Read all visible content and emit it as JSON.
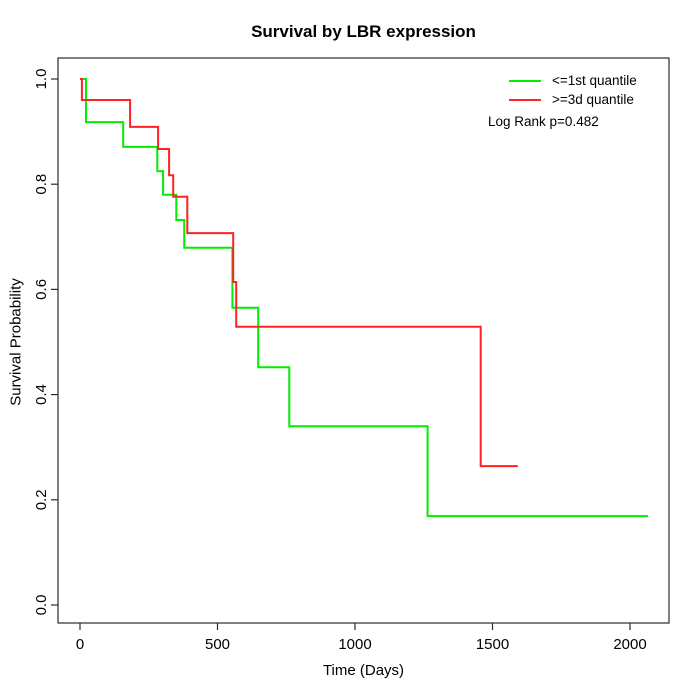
{
  "chart_data": {
    "type": "line",
    "subtype": "kaplan-meier-step",
    "title": "Survival by LBR expression",
    "xlabel": "Time (Days)",
    "ylabel": "Survival Probability",
    "xlim": [
      0,
      2065
    ],
    "ylim": [
      0,
      1
    ],
    "xticks": [
      0,
      500,
      1000,
      1500,
      2000
    ],
    "xtick_labels": [
      "0",
      "500",
      "1000",
      "1500",
      "2000"
    ],
    "yticks": [
      0,
      0.2,
      0.4,
      0.6,
      0.8,
      1.0
    ],
    "ytick_labels": [
      "0.0",
      "0.2",
      "0.4",
      "0.6",
      "0.8",
      "1.0"
    ],
    "grid": false,
    "legend_position": "top-right",
    "annotation": "Log Rank p=0.482",
    "colors": {
      "series_green": "#00ee00",
      "series_red": "#ff2222",
      "axis": "#2b2b2b",
      "text": "#000000",
      "background": "#ffffff"
    },
    "series": [
      {
        "name": "<=1st quantile",
        "color": "#00ee00",
        "end_time": 2065,
        "steps": [
          [
            0,
            1.0
          ],
          [
            22,
            0.918
          ],
          [
            157,
            0.871
          ],
          [
            281,
            0.825
          ],
          [
            302,
            0.78
          ],
          [
            350,
            0.732
          ],
          [
            379,
            0.679
          ],
          [
            554,
            0.565
          ],
          [
            648,
            0.452
          ],
          [
            761,
            0.34
          ],
          [
            1264,
            0.169
          ]
        ]
      },
      {
        "name": ">=3d quantile",
        "color": "#ff2222",
        "end_time": 1592,
        "steps": [
          [
            0,
            1.0
          ],
          [
            7,
            0.96
          ],
          [
            182,
            0.909
          ],
          [
            284,
            0.867
          ],
          [
            324,
            0.817
          ],
          [
            339,
            0.776
          ],
          [
            390,
            0.707
          ],
          [
            557,
            0.614
          ],
          [
            568,
            0.529
          ],
          [
            1457,
            0.264
          ]
        ]
      }
    ]
  }
}
